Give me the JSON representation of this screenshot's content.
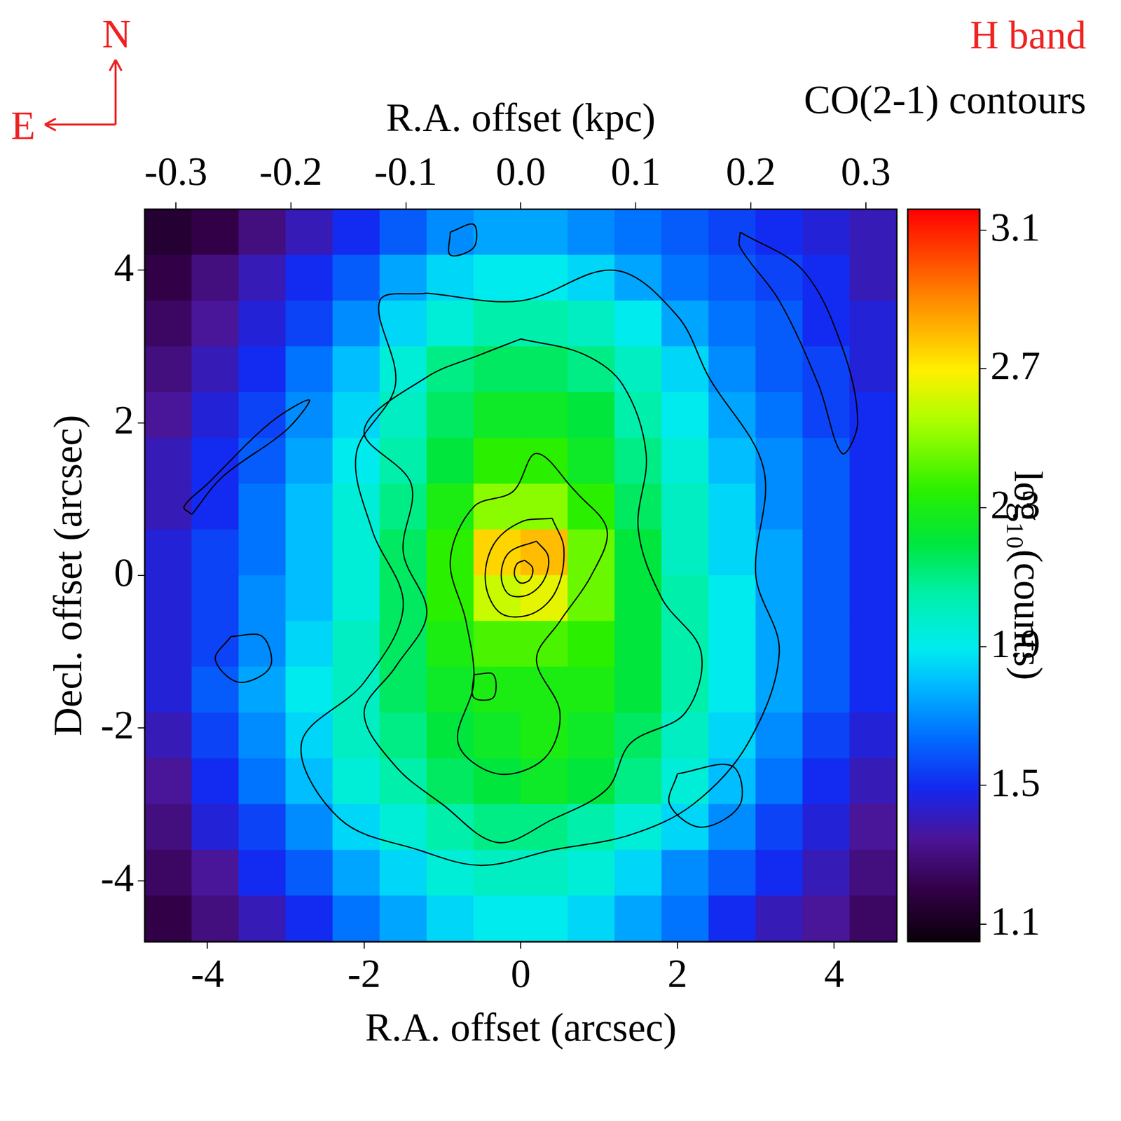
{
  "chart_data": {
    "type": "heatmap",
    "title": "H band",
    "subtitle": "CO(2-1) contours",
    "compass": {
      "north": "N",
      "east": "E"
    },
    "x_label": "R.A. offset (arcsec)",
    "y_label": "Decl. offset (arcsec)",
    "x2_label": "R.A. offset (kpc)",
    "xlim": [
      -4.8,
      4.8
    ],
    "xticks": [
      -4,
      -2,
      0,
      2,
      4
    ],
    "ylim": [
      -4.8,
      4.8
    ],
    "yticks": [
      -4,
      -2,
      0,
      2,
      4
    ],
    "x2lim": [
      -0.327,
      0.327
    ],
    "x2ticks": [
      -0.3,
      -0.2,
      -0.1,
      {
        "value": 0,
        "label": "0.0"
      },
      0.1,
      0.2,
      0.3
    ],
    "grid": false,
    "cells": {
      "x": [
        -4.5,
        -3.9,
        -3.3,
        -2.7,
        -2.1,
        -1.5,
        -0.9,
        -0.3,
        0.3,
        0.9,
        1.5,
        2.1,
        2.7,
        3.3,
        3.9,
        4.5
      ],
      "y": [
        4.5,
        3.9,
        3.3,
        2.7,
        2.1,
        1.5,
        0.9,
        0.3,
        -0.3,
        -0.9,
        -1.5,
        -2.1,
        -2.7,
        -3.3,
        -3.9,
        -4.5
      ],
      "values": [
        [
          1.15,
          1.2,
          1.3,
          1.4,
          1.5,
          1.6,
          1.7,
          1.75,
          1.75,
          1.7,
          1.65,
          1.6,
          1.55,
          1.5,
          1.45,
          1.4
        ],
        [
          1.2,
          1.3,
          1.4,
          1.5,
          1.6,
          1.75,
          1.85,
          1.9,
          1.9,
          1.85,
          1.75,
          1.65,
          1.6,
          1.55,
          1.5,
          1.4
        ],
        [
          1.25,
          1.35,
          1.45,
          1.55,
          1.7,
          1.85,
          1.95,
          2.05,
          2.05,
          2.0,
          1.9,
          1.75,
          1.65,
          1.6,
          1.5,
          1.45
        ],
        [
          1.3,
          1.4,
          1.5,
          1.65,
          1.8,
          1.95,
          2.1,
          2.15,
          2.15,
          2.1,
          2.0,
          1.85,
          1.7,
          1.6,
          1.55,
          1.45
        ],
        [
          1.35,
          1.45,
          1.55,
          1.7,
          1.85,
          2.0,
          2.15,
          2.25,
          2.25,
          2.2,
          2.05,
          1.9,
          1.75,
          1.65,
          1.55,
          1.5
        ],
        [
          1.4,
          1.5,
          1.6,
          1.75,
          1.9,
          2.05,
          2.2,
          2.35,
          2.35,
          2.25,
          2.1,
          1.95,
          1.8,
          1.7,
          1.6,
          1.5
        ],
        [
          1.4,
          1.5,
          1.65,
          1.8,
          1.95,
          2.1,
          2.3,
          2.5,
          2.5,
          2.35,
          2.15,
          2.0,
          1.85,
          1.7,
          1.6,
          1.5
        ],
        [
          1.45,
          1.55,
          1.65,
          1.8,
          1.95,
          2.15,
          2.35,
          2.75,
          2.8,
          2.45,
          2.2,
          2.0,
          1.85,
          1.75,
          1.6,
          1.5
        ],
        [
          1.45,
          1.55,
          1.7,
          1.8,
          1.95,
          2.15,
          2.35,
          2.6,
          2.65,
          2.45,
          2.2,
          2.05,
          1.9,
          1.75,
          1.6,
          1.5
        ],
        [
          1.45,
          1.55,
          1.7,
          1.85,
          2.0,
          2.15,
          2.3,
          2.4,
          2.4,
          2.35,
          2.2,
          2.05,
          1.9,
          1.75,
          1.6,
          1.5
        ],
        [
          1.45,
          1.6,
          1.75,
          1.9,
          2.0,
          2.15,
          2.25,
          2.3,
          2.3,
          2.3,
          2.2,
          2.05,
          1.9,
          1.75,
          1.6,
          1.5
        ],
        [
          1.4,
          1.55,
          1.7,
          1.85,
          2.0,
          2.1,
          2.2,
          2.25,
          2.3,
          2.25,
          2.15,
          2.0,
          1.85,
          1.7,
          1.55,
          1.45
        ],
        [
          1.35,
          1.5,
          1.65,
          1.8,
          1.95,
          2.05,
          2.15,
          2.2,
          2.25,
          2.2,
          2.1,
          1.95,
          1.8,
          1.65,
          1.5,
          1.4
        ],
        [
          1.3,
          1.45,
          1.55,
          1.7,
          1.85,
          1.95,
          2.05,
          2.1,
          2.1,
          2.05,
          1.95,
          1.85,
          1.7,
          1.55,
          1.45,
          1.35
        ],
        [
          1.25,
          1.35,
          1.5,
          1.6,
          1.75,
          1.85,
          1.95,
          2.0,
          2.0,
          1.95,
          1.85,
          1.7,
          1.6,
          1.5,
          1.4,
          1.3
        ],
        [
          1.2,
          1.3,
          1.4,
          1.5,
          1.65,
          1.75,
          1.85,
          1.9,
          1.9,
          1.85,
          1.75,
          1.65,
          1.5,
          1.4,
          1.35,
          1.25
        ]
      ]
    },
    "colorbar": {
      "label": "log₁₀(counts)",
      "range": [
        1.05,
        3.16
      ],
      "ticks": [
        1.1,
        1.5,
        1.9,
        2.3,
        2.7,
        3.1
      ]
    },
    "contours": {
      "color": "#000000",
      "lines": [
        [
          [
            0.05,
            0.2
          ],
          [
            0.15,
            0.1
          ],
          [
            0.12,
            -0.05
          ],
          [
            0.0,
            -0.1
          ],
          [
            -0.08,
            0.0
          ],
          [
            -0.05,
            0.15
          ],
          [
            0.05,
            0.2
          ]
        ],
        [
          [
            0.2,
            0.45
          ],
          [
            0.35,
            0.25
          ],
          [
            0.3,
            -0.05
          ],
          [
            0.1,
            -0.25
          ],
          [
            -0.15,
            -0.25
          ],
          [
            -0.25,
            0.0
          ],
          [
            -0.15,
            0.3
          ],
          [
            0.2,
            0.45
          ]
        ],
        [
          [
            0.4,
            0.75
          ],
          [
            0.55,
            0.35
          ],
          [
            0.45,
            -0.2
          ],
          [
            0.15,
            -0.5
          ],
          [
            -0.25,
            -0.5
          ],
          [
            -0.45,
            -0.1
          ],
          [
            -0.35,
            0.4
          ],
          [
            0.0,
            0.7
          ],
          [
            0.4,
            0.75
          ]
        ],
        [
          [
            0.7,
            1.1
          ],
          [
            1.1,
            0.6
          ],
          [
            0.9,
            0.0
          ],
          [
            0.5,
            -0.6
          ],
          [
            0.2,
            -1.1
          ],
          [
            0.5,
            -1.8
          ],
          [
            0.3,
            -2.4
          ],
          [
            -0.3,
            -2.6
          ],
          [
            -0.8,
            -2.2
          ],
          [
            -0.6,
            -1.4
          ],
          [
            -0.7,
            -0.6
          ],
          [
            -0.9,
            0.2
          ],
          [
            -0.6,
            0.9
          ],
          [
            -0.1,
            1.1
          ],
          [
            0.2,
            1.6
          ],
          [
            0.7,
            1.1
          ]
        ],
        [
          [
            0.0,
            3.1
          ],
          [
            0.8,
            2.9
          ],
          [
            1.3,
            2.5
          ],
          [
            1.6,
            1.6
          ],
          [
            1.5,
            0.6
          ],
          [
            1.8,
            -0.3
          ],
          [
            2.3,
            -1.0
          ],
          [
            2.1,
            -1.8
          ],
          [
            1.4,
            -2.2
          ],
          [
            1.1,
            -2.8
          ],
          [
            0.4,
            -3.2
          ],
          [
            -0.3,
            -3.5
          ],
          [
            -1.0,
            -3.0
          ],
          [
            -1.6,
            -2.5
          ],
          [
            -2.0,
            -1.8
          ],
          [
            -1.6,
            -1.2
          ],
          [
            -1.2,
            -0.5
          ],
          [
            -1.5,
            0.3
          ],
          [
            -1.4,
            1.2
          ],
          [
            -2.0,
            1.9
          ],
          [
            -1.2,
            2.6
          ],
          [
            -0.5,
            2.9
          ],
          [
            0.0,
            3.1
          ]
        ],
        [
          [
            -1.2,
            3.7
          ],
          [
            0.0,
            3.6
          ],
          [
            1.2,
            4.0
          ],
          [
            2.0,
            3.4
          ],
          [
            2.4,
            2.6
          ],
          [
            3.1,
            1.4
          ],
          [
            3.0,
            0.0
          ],
          [
            3.3,
            -1.0
          ],
          [
            2.9,
            -2.2
          ],
          [
            2.2,
            -3.0
          ],
          [
            1.4,
            -3.4
          ],
          [
            0.4,
            -3.6
          ],
          [
            -0.5,
            -3.8
          ],
          [
            -1.3,
            -3.6
          ],
          [
            -2.3,
            -3.2
          ],
          [
            -2.8,
            -2.2
          ],
          [
            -2.0,
            -1.4
          ],
          [
            -1.5,
            -0.4
          ],
          [
            -1.9,
            0.6
          ],
          [
            -2.1,
            1.6
          ],
          [
            -1.6,
            2.5
          ],
          [
            -1.8,
            3.6
          ],
          [
            -1.2,
            3.7
          ]
        ],
        [
          [
            -4.2,
            0.8
          ],
          [
            -3.8,
            1.3
          ],
          [
            -3.0,
            1.9
          ],
          [
            -2.7,
            2.3
          ],
          [
            -3.2,
            2.0
          ],
          [
            -4.0,
            1.2
          ],
          [
            -4.3,
            0.9
          ],
          [
            -4.2,
            0.8
          ]
        ],
        [
          [
            2.8,
            4.5
          ],
          [
            3.6,
            4.0
          ],
          [
            4.1,
            3.0
          ],
          [
            4.3,
            2.0
          ],
          [
            4.1,
            1.6
          ],
          [
            3.8,
            2.5
          ],
          [
            3.3,
            3.6
          ],
          [
            2.8,
            4.3
          ],
          [
            2.8,
            4.5
          ]
        ],
        [
          [
            -3.7,
            -0.8
          ],
          [
            -3.3,
            -0.8
          ],
          [
            -3.2,
            -1.2
          ],
          [
            -3.6,
            -1.4
          ],
          [
            -3.9,
            -1.1
          ],
          [
            -3.7,
            -0.8
          ]
        ],
        [
          [
            2.0,
            -2.6
          ],
          [
            2.7,
            -2.5
          ],
          [
            2.8,
            -3.0
          ],
          [
            2.3,
            -3.3
          ],
          [
            1.9,
            -3.0
          ],
          [
            2.0,
            -2.6
          ]
        ],
        [
          [
            -0.9,
            4.5
          ],
          [
            -0.6,
            4.6
          ],
          [
            -0.6,
            4.3
          ],
          [
            -0.9,
            4.2
          ],
          [
            -0.9,
            4.5
          ]
        ],
        [
          [
            -0.6,
            -1.3
          ],
          [
            -0.35,
            -1.3
          ],
          [
            -0.35,
            -1.6
          ],
          [
            -0.6,
            -1.6
          ],
          [
            -0.6,
            -1.3
          ]
        ]
      ]
    }
  }
}
